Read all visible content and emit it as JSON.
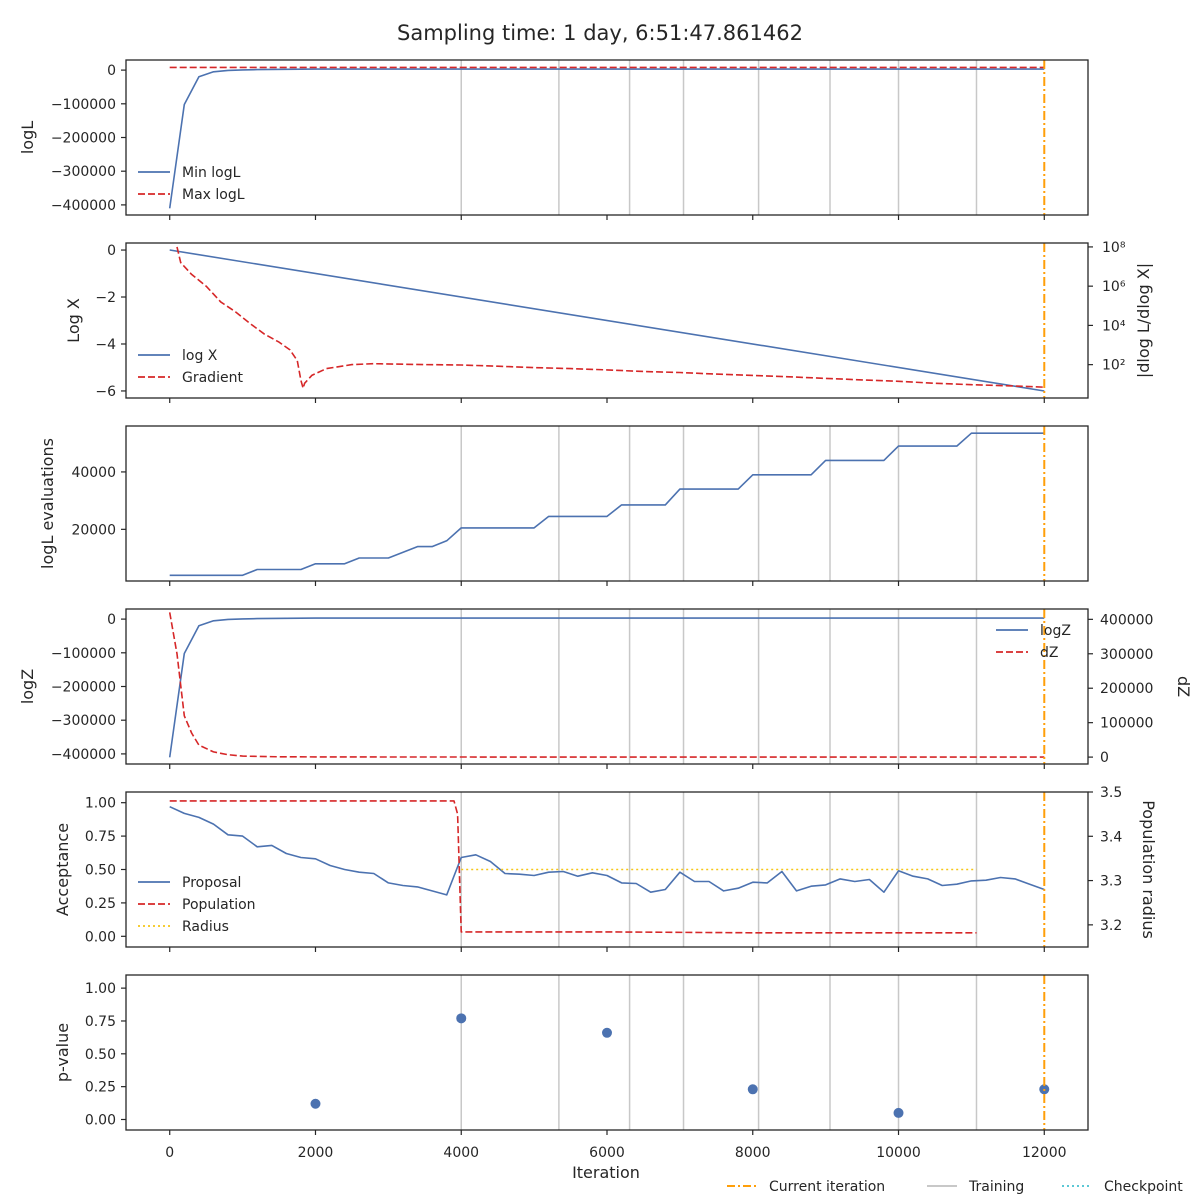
{
  "title": "Sampling time: 1 day, 6:51:47.861462",
  "xlabel": "Iteration",
  "shared_x": {
    "lim": [
      -600,
      12600
    ],
    "ticks": [
      0,
      2000,
      4000,
      6000,
      8000,
      10000,
      12000
    ],
    "tick_labels": [
      "0",
      "2000",
      "4000",
      "6000",
      "8000",
      "10000",
      "12000"
    ]
  },
  "training_iterations": [
    4000,
    5340,
    6310,
    7050,
    8080,
    9060,
    10000,
    11070
  ],
  "current_iteration": 12000,
  "legend": {
    "current": "Current iteration",
    "training": "Training",
    "checkpoint": "Checkpoint"
  },
  "colors": {
    "blue": "#4c72b0",
    "red": "#d62728",
    "orange": "#ff9f0a",
    "gold": "#f5c518",
    "grey": "#c8c8c8",
    "cyan": "#5bc8d6"
  },
  "chart_data": [
    {
      "type": "line",
      "ylabel": "logL",
      "ylim": [
        -430000,
        30000
      ],
      "yticks": [
        0,
        -100000,
        -200000,
        -300000,
        -400000
      ],
      "ytick_labels": [
        "0",
        "−100000",
        "−200000",
        "−300000",
        "−400000"
      ],
      "show_training": true,
      "legend_pos": "lower-left",
      "series": [
        {
          "name": "Min logL",
          "style": "solid",
          "color": "blue",
          "x": [
            0,
            200,
            400,
            600,
            800,
            1000,
            1200,
            1600,
            2000,
            3000,
            4000,
            6000,
            8000,
            10000,
            12000
          ],
          "y": [
            -410000,
            -102000,
            -20000,
            -5000,
            -1000,
            500,
            1500,
            2500,
            3000,
            3000,
            3000,
            3000,
            3000,
            3000,
            3000
          ]
        },
        {
          "name": "Max logL",
          "style": "dashed",
          "color": "red",
          "x": [
            0,
            12000
          ],
          "y": [
            8000,
            8000
          ]
        }
      ]
    },
    {
      "type": "line",
      "ylabel": "Log X",
      "ylim": [
        -6.3,
        0.3
      ],
      "yticks": [
        0,
        -2,
        -4,
        -6
      ],
      "ytick_labels": [
        "0",
        "−2",
        "−4",
        "−6"
      ],
      "y2label": "|dlog L/dlog X|",
      "y2_log": true,
      "y2lim_log10": [
        0.3,
        8.2
      ],
      "y2ticks_exp": [
        8,
        6,
        4,
        2
      ],
      "show_training": false,
      "legend_pos": "lower-left",
      "series": [
        {
          "name": "log X",
          "style": "solid",
          "color": "blue",
          "axis": "left",
          "x": [
            0,
            12000
          ],
          "y": [
            0,
            -6.0
          ]
        },
        {
          "name": "Gradient",
          "style": "dashed",
          "color": "red",
          "axis": "right",
          "x": [
            100,
            150,
            300,
            500,
            700,
            900,
            1100,
            1300,
            1500,
            1650,
            1750,
            1800,
            1830,
            1850,
            1950,
            2150,
            2500,
            2800,
            3500,
            4000,
            4500,
            5000,
            5500,
            6000,
            6500,
            7000,
            7500,
            8000,
            8500,
            9000,
            9500,
            10000,
            10500,
            11000,
            11500,
            11800,
            12000
          ],
          "y": [
            8.0,
            7.2,
            6.6,
            6.0,
            5.2,
            4.7,
            4.1,
            3.55,
            3.15,
            2.75,
            2.2,
            1.2,
            0.8,
            1.05,
            1.45,
            1.8,
            2.0,
            2.05,
            2.0,
            1.98,
            1.92,
            1.85,
            1.8,
            1.73,
            1.65,
            1.6,
            1.52,
            1.45,
            1.38,
            1.3,
            1.22,
            1.15,
            1.05,
            0.98,
            0.92,
            0.88,
            0.85
          ]
        }
      ]
    },
    {
      "type": "line",
      "ylabel": "logL evaluations",
      "ylim": [
        2000,
        56000
      ],
      "yticks": [
        20000,
        40000
      ],
      "ytick_labels": [
        "20000",
        "40000"
      ],
      "show_training": true,
      "series": [
        {
          "name": "",
          "style": "solid",
          "color": "blue",
          "x": [
            0,
            1000,
            1200,
            1800,
            2000,
            2400,
            2600,
            3000,
            3400,
            3600,
            3800,
            4000,
            5000,
            5200,
            6000,
            6200,
            6800,
            7000,
            7800,
            8000,
            8800,
            9000,
            9800,
            10000,
            10800,
            11000,
            12000
          ],
          "y": [
            4000,
            4000,
            6000,
            6000,
            8000,
            8000,
            10000,
            10000,
            14000,
            14000,
            16000,
            20500,
            20500,
            24500,
            24500,
            28500,
            28500,
            34000,
            34000,
            39000,
            39000,
            44000,
            44000,
            49000,
            49000,
            53500,
            53500
          ]
        }
      ]
    },
    {
      "type": "line",
      "ylabel": "logZ",
      "ylim": [
        -430000,
        30000
      ],
      "yticks": [
        0,
        -100000,
        -200000,
        -300000,
        -400000
      ],
      "ytick_labels": [
        "0",
        "−100000",
        "−200000",
        "−300000",
        "−400000"
      ],
      "y2label": "dZ",
      "y2lim": [
        -20000,
        430000
      ],
      "y2ticks": [
        0,
        100000,
        200000,
        300000,
        400000
      ],
      "y2tick_labels": [
        "0",
        "100000",
        "200000",
        "300000",
        "400000"
      ],
      "show_training": true,
      "legend_pos": "upper-right",
      "series": [
        {
          "name": "logZ",
          "style": "solid",
          "color": "blue",
          "axis": "left",
          "x": [
            0,
            200,
            400,
            600,
            800,
            1000,
            1200,
            1600,
            2000,
            3000,
            12000
          ],
          "y": [
            -410000,
            -102000,
            -20000,
            -5000,
            -1000,
            500,
            1500,
            2500,
            3000,
            3000,
            3000
          ]
        },
        {
          "name": "dZ",
          "style": "dashed",
          "color": "red",
          "axis": "right",
          "x": [
            0,
            100,
            200,
            300,
            400,
            600,
            800,
            1000,
            1500,
            2000,
            3000,
            12000
          ],
          "y": [
            420000,
            300000,
            120000,
            70000,
            35000,
            15000,
            7000,
            3000,
            1000,
            500,
            200,
            100
          ]
        }
      ]
    },
    {
      "type": "line",
      "ylabel": "Acceptance",
      "ylim": [
        -0.08,
        1.08
      ],
      "yticks": [
        0,
        0.25,
        0.5,
        0.75,
        1.0
      ],
      "ytick_labels": [
        "0.00",
        "0.25",
        "0.50",
        "0.75",
        "1.00"
      ],
      "y2label": "Population radius",
      "y2lim": [
        3.15,
        3.5
      ],
      "y2ticks": [
        3.2,
        3.3,
        3.4,
        3.5
      ],
      "y2tick_labels": [
        "3.2",
        "3.3",
        "3.4",
        "3.5"
      ],
      "show_training": true,
      "legend_pos": "lower-left",
      "series": [
        {
          "name": "Proposal",
          "style": "solid",
          "color": "blue",
          "axis": "left",
          "x": [
            0,
            200,
            400,
            600,
            800,
            1000,
            1200,
            1400,
            1600,
            1800,
            2000,
            2200,
            2400,
            2600,
            2800,
            3000,
            3200,
            3400,
            3600,
            3800,
            4000,
            4200,
            4400,
            4600,
            4800,
            5000,
            5200,
            5400,
            5600,
            5800,
            6000,
            6200,
            6400,
            6600,
            6800,
            7000,
            7200,
            7400,
            7600,
            7800,
            8000,
            8200,
            8400,
            8600,
            8800,
            9000,
            9200,
            9400,
            9600,
            9800,
            10000,
            10200,
            10400,
            10600,
            10800,
            11000,
            11200,
            11400,
            11600,
            11800,
            12000
          ],
          "y": [
            0.97,
            0.92,
            0.89,
            0.84,
            0.76,
            0.75,
            0.67,
            0.68,
            0.62,
            0.59,
            0.58,
            0.53,
            0.5,
            0.48,
            0.47,
            0.4,
            0.38,
            0.37,
            0.34,
            0.31,
            0.59,
            0.61,
            0.56,
            0.47,
            0.465,
            0.455,
            0.48,
            0.485,
            0.45,
            0.475,
            0.455,
            0.4,
            0.395,
            0.33,
            0.35,
            0.48,
            0.41,
            0.41,
            0.34,
            0.36,
            0.405,
            0.4,
            0.485,
            0.34,
            0.375,
            0.385,
            0.43,
            0.41,
            0.425,
            0.33,
            0.49,
            0.45,
            0.43,
            0.38,
            0.39,
            0.415,
            0.42,
            0.44,
            0.43,
            0.39,
            0.35
          ]
        },
        {
          "name": "Population",
          "style": "dashed",
          "color": "red",
          "axis": "right",
          "x": [
            0,
            3900,
            3950,
            4000,
            6000,
            8000,
            11070
          ],
          "y": [
            3.48,
            3.48,
            3.45,
            3.184,
            3.184,
            3.182,
            3.182
          ]
        },
        {
          "name": "Radius",
          "style": "dotted",
          "color": "gold",
          "axis": "left",
          "x": [
            4000,
            11070
          ],
          "y": [
            0.5,
            0.5
          ]
        }
      ]
    },
    {
      "type": "scatter",
      "ylabel": "p-value",
      "ylim": [
        -0.08,
        1.1
      ],
      "yticks": [
        0,
        0.25,
        0.5,
        0.75,
        1.0
      ],
      "ytick_labels": [
        "0.00",
        "0.25",
        "0.50",
        "0.75",
        "1.00"
      ],
      "show_training": true,
      "series": [
        {
          "name": "",
          "color": "blue",
          "x": [
            2000,
            4000,
            6000,
            8000,
            10000,
            12000
          ],
          "y": [
            0.12,
            0.77,
            0.66,
            0.23,
            0.05,
            0.23
          ]
        }
      ]
    }
  ]
}
